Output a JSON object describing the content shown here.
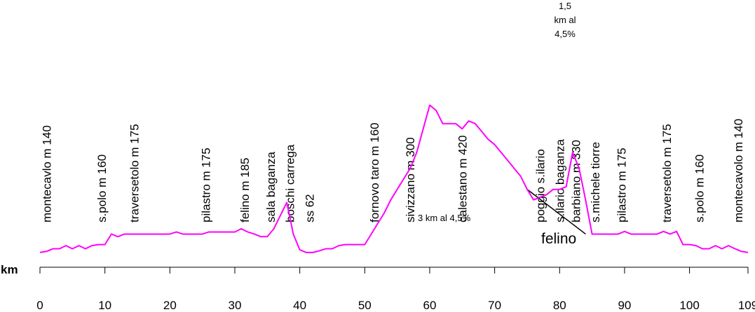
{
  "chart_data": {
    "type": "line",
    "title": "",
    "xlabel": "km",
    "ylabel": "",
    "xlim": [
      0,
      109
    ],
    "x_ticks": [
      0,
      10,
      20,
      30,
      40,
      50,
      60,
      70,
      80,
      90,
      100,
      109
    ],
    "x_tick_labels": [
      "0",
      "10",
      "20",
      "30",
      "40",
      "50",
      "60",
      "70",
      "80",
      "90",
      "100",
      "109"
    ],
    "ylim": [
      80,
      600
    ],
    "grid": false,
    "legend": "none",
    "series": [
      {
        "color": "#ff00ff",
        "x": [
          0,
          1,
          2,
          3,
          4,
          5,
          6,
          7,
          8,
          9,
          10,
          11,
          12,
          13,
          14,
          15,
          16,
          17,
          18,
          19,
          20,
          21,
          22,
          23,
          24,
          25,
          26,
          27,
          28,
          29,
          30,
          31,
          32,
          33,
          34,
          35,
          36,
          37,
          38,
          39,
          40,
          41,
          42,
          43,
          44,
          45,
          46,
          47,
          48,
          49,
          50,
          51,
          52,
          53,
          54,
          55,
          56,
          57,
          58,
          59,
          60,
          61,
          62,
          63,
          64,
          65,
          66,
          67,
          68,
          69,
          70,
          71,
          72,
          73,
          74,
          75,
          76,
          77,
          78,
          79,
          80,
          81,
          82,
          83,
          84,
          85,
          86,
          87,
          88,
          89,
          90,
          91,
          92,
          93,
          94,
          95,
          96,
          97,
          98,
          99,
          100,
          101,
          102,
          103,
          104,
          105,
          106,
          107,
          108,
          109
        ],
        "y": [
          140,
          142,
          147,
          147,
          153,
          147,
          153,
          147,
          153,
          155,
          155,
          175,
          170,
          175,
          175,
          175,
          175,
          175,
          175,
          175,
          175,
          179,
          175,
          175,
          175,
          175,
          179,
          179,
          179,
          179,
          179,
          185,
          179,
          175,
          170,
          170,
          185,
          210,
          235,
          175,
          145,
          140,
          140,
          143,
          147,
          147,
          153,
          155,
          155,
          155,
          155,
          175,
          195,
          215,
          240,
          260,
          280,
          300,
          330,
          375,
          420,
          410,
          385,
          385,
          385,
          375,
          390,
          385,
          370,
          355,
          345,
          330,
          315,
          300,
          285,
          260,
          240,
          245,
          250,
          260,
          260,
          265,
          330,
          300,
          240,
          175,
          175,
          175,
          175,
          175,
          180,
          175,
          175,
          175,
          175,
          175,
          180,
          175,
          180,
          155,
          155,
          153,
          147,
          147,
          153,
          147,
          153,
          147,
          142,
          140
        ]
      }
    ],
    "place_labels": [
      {
        "text": "montecavlo m 140",
        "km": 1
      },
      {
        "text": "s.polo m 160",
        "km": 9.5
      },
      {
        "text": "traversetolo m 175",
        "km": 14.5
      },
      {
        "text": "pilastro m  175",
        "km": 25.5
      },
      {
        "text": "felino m 185",
        "km": 31.5
      },
      {
        "text": "sala baganza",
        "km": 35.5
      },
      {
        "text": "boschi carrega",
        "km": 38.5
      },
      {
        "text": "ss 62",
        "km": 41.5
      },
      {
        "text": "fornovo taro m 160",
        "km": 51.5
      },
      {
        "text": "sivizzano m 300",
        "km": 57
      },
      {
        "text": "calestano m 420",
        "km": 65
      },
      {
        "text": "poggio s.ilario",
        "km": 77
      },
      {
        "text": "s.ilario baganza",
        "km": 80
      },
      {
        "text": "barbiano m 330",
        "km": 82.5
      },
      {
        "text": "s.michele tiorre",
        "km": 85.5
      },
      {
        "text": "pilastro m 175",
        "km": 89.5
      },
      {
        "text": "traversetolo m 175",
        "km": 96.5
      },
      {
        "text": "s.polo m 160",
        "km": 101.5
      },
      {
        "text": "montecavolo m 140",
        "km": 107.5
      }
    ],
    "annotations": [
      {
        "text": "3 km  al 4,5%"
      },
      {
        "text": "felino"
      },
      {
        "lines": [
          "1,5",
          "km al",
          "4,5%"
        ]
      }
    ],
    "variant_route": {
      "color": "#000000",
      "x": [
        75,
        84
      ],
      "y": [
        260,
        175
      ]
    }
  }
}
